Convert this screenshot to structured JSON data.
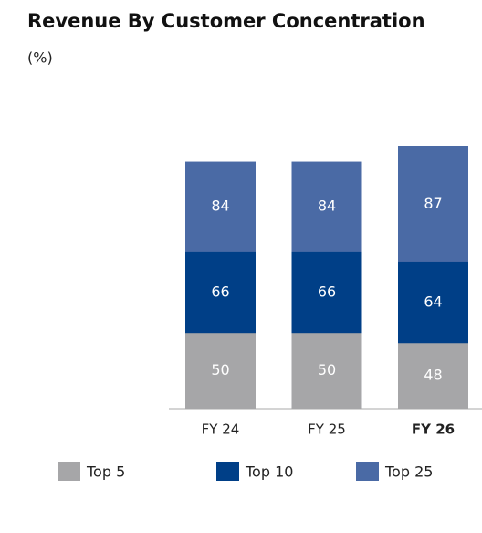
{
  "chart_data": {
    "type": "bar",
    "title": "Revenue By Customer Concentration",
    "subtitle": "(%)",
    "categories": [
      "FY 24",
      "FY 25",
      "FY 26"
    ],
    "series": [
      {
        "name": "Top 25",
        "color": "#4a6aa5",
        "values": [
          84,
          84,
          87
        ]
      },
      {
        "name": "Top 10",
        "color": "#003f87",
        "values": [
          66,
          66,
          64
        ]
      },
      {
        "name": "Top 5",
        "color": "#a6a6a8",
        "values": [
          50,
          50,
          48
        ]
      }
    ],
    "ylim": [
      35,
      87
    ],
    "highlight_index": 2
  }
}
